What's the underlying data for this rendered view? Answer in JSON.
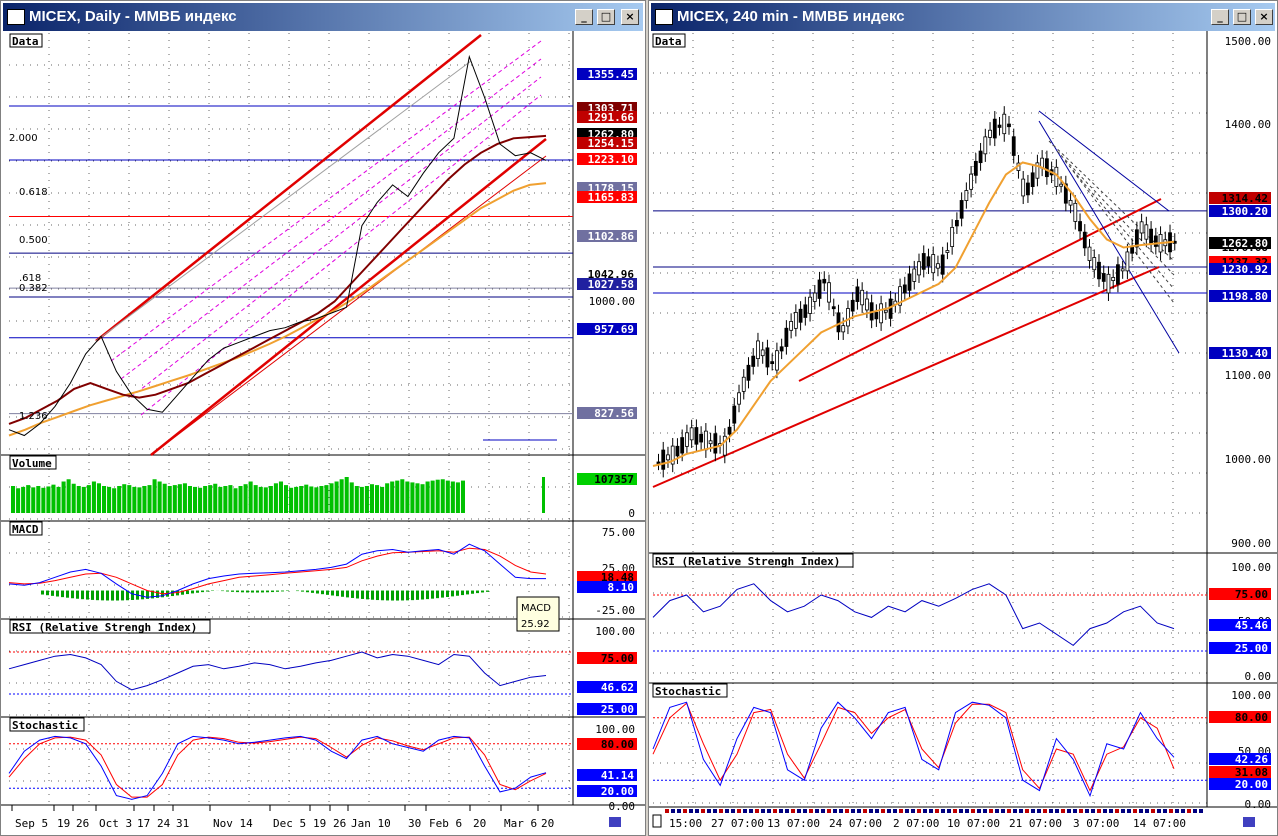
{
  "left_window": {
    "title": "MICEX, Daily - ММВБ индекс",
    "panes": {
      "data": "Data",
      "volume": "Volume",
      "macd": "MACD",
      "rsi": "RSI (Relative Strengh Index)",
      "stochastic": "Stochastic"
    },
    "fib_labels": [
      "2.000",
      "0.618",
      "0.500",
      ".618",
      "0.382",
      "1.236"
    ],
    "price_tags": [
      {
        "text": "1355.45",
        "bg": "#0000c0",
        "fg": "#ffffff"
      },
      {
        "text": "1303.71",
        "bg": "#800000",
        "fg": "#ffffff"
      },
      {
        "text": "1291.66",
        "bg": "#c00000",
        "fg": "#ffffff"
      },
      {
        "text": "1262.80",
        "bg": "#000000",
        "fg": "#ffffff"
      },
      {
        "text": "1254.15",
        "bg": "#c00000",
        "fg": "#ffffff"
      },
      {
        "text": "1223.10",
        "bg": "#ff0000",
        "fg": "#ffffff"
      },
      {
        "text": "1178.15",
        "bg": "#7070a0",
        "fg": "#ffffff"
      },
      {
        "text": "1165.83",
        "bg": "#ff0000",
        "fg": "#ffffff"
      },
      {
        "text": "1102.86",
        "bg": "#7070a0",
        "fg": "#ffffff"
      },
      {
        "text": "1042.96",
        "bg": "#ffffff",
        "fg": "#000000"
      },
      {
        "text": "1027.58",
        "bg": "#2020a0",
        "fg": "#ffffff"
      },
      {
        "text": "957.69",
        "bg": "#0000c0",
        "fg": "#ffffff"
      },
      {
        "text": "827.56",
        "bg": "#7070a0",
        "fg": "#ffffff"
      }
    ],
    "price_axis": [
      "1000.00"
    ],
    "volume_tags": {
      "last": "107357",
      "zero": "0"
    },
    "macd_axis": [
      "75.00",
      "25.00",
      "-25.00"
    ],
    "macd_tags": [
      {
        "text": "18.48",
        "bg": "#ff0000",
        "fg": "#000000"
      },
      {
        "text": "8.10",
        "bg": "#0000ff",
        "fg": "#ffffff"
      }
    ],
    "macd_tooltip": {
      "name": "MACD",
      "value": "25.92"
    },
    "rsi_axis": [
      "100.00"
    ],
    "rsi_tags": [
      {
        "text": "75.00",
        "bg": "#ff0000",
        "fg": "#000000"
      },
      {
        "text": "46.62",
        "bg": "#0000ff",
        "fg": "#ffffff"
      },
      {
        "text": "25.00",
        "bg": "#0000ff",
        "fg": "#ffffff"
      }
    ],
    "stoch_axis": [
      "100.00",
      "0.00"
    ],
    "stoch_tags": [
      {
        "text": "80.00",
        "bg": "#ff0000",
        "fg": "#000000"
      },
      {
        "text": "41.14",
        "bg": "#0000ff",
        "fg": "#ffffff"
      },
      {
        "text": "20.00",
        "bg": "#0000ff",
        "fg": "#ffffff"
      }
    ],
    "x_labels": [
      "Sep 5",
      "19",
      "26",
      "Oct 3",
      "17",
      "24",
      "31",
      "Nov 14",
      "Dec 5",
      "19",
      "26",
      "Jan 10",
      "30",
      "Feb 6",
      "20",
      "Mar 6",
      "20"
    ]
  },
  "right_window": {
    "title": "MICEX, 240 min - ММВБ индекс",
    "panes": {
      "data": "Data",
      "rsi": "RSI (Relative Strengh Index)",
      "stochastic": "Stochastic"
    },
    "price_axis": [
      "1500.00",
      "1400.00",
      "1100.00",
      "1000.00",
      "900.00"
    ],
    "price_tags": [
      {
        "text": "1314.42",
        "bg": "#c00000",
        "fg": "#000000"
      },
      {
        "text": "1300.20",
        "bg": "#0000c0",
        "fg": "#ffffff"
      },
      {
        "text": "1276.68",
        "bg": "#ffffff",
        "fg": "#000000"
      },
      {
        "text": "1262.80",
        "bg": "#000000",
        "fg": "#ffffff"
      },
      {
        "text": "1237.32",
        "bg": "#ff0000",
        "fg": "#000000"
      },
      {
        "text": "1230.92",
        "bg": "#0000c0",
        "fg": "#ffffff"
      },
      {
        "text": "1198.80",
        "bg": "#0000c0",
        "fg": "#ffffff"
      },
      {
        "text": "1130.40",
        "bg": "#0000c0",
        "fg": "#ffffff"
      }
    ],
    "rsi_axis": [
      "100.00",
      "50.00",
      "0.00"
    ],
    "rsi_tags": [
      {
        "text": "75.00",
        "bg": "#ff0000",
        "fg": "#000000"
      },
      {
        "text": "45.46",
        "bg": "#0000ff",
        "fg": "#ffffff"
      },
      {
        "text": "25.00",
        "bg": "#0000ff",
        "fg": "#ffffff"
      }
    ],
    "stoch_axis": [
      "100.00",
      "50.00",
      "0.00"
    ],
    "stoch_tags": [
      {
        "text": "80.00",
        "bg": "#ff0000",
        "fg": "#000000"
      },
      {
        "text": "42.26",
        "bg": "#0000ff",
        "fg": "#ffffff"
      },
      {
        "text": "31.08",
        "bg": "#ff0000",
        "fg": "#000000"
      },
      {
        "text": "20.00",
        "bg": "#0000ff",
        "fg": "#ffffff"
      }
    ],
    "x_labels": [
      "15:00",
      "27 07:00",
      "13 07:00",
      "24 07:00",
      "2 07:00",
      "10 07:00",
      "21 07:00",
      "3 07:00",
      "14 07:00"
    ]
  },
  "colors": {
    "price": "#000000",
    "ma_fast": "#800000",
    "ma_slow": "#f0a030",
    "trend": "#e00000",
    "level": "#000080",
    "volume": "#00c000"
  },
  "chart_data": [
    {
      "type": "line",
      "title": "MICEX, Daily - ММВБ индекс",
      "x_ticks": [
        "Sep 5",
        "19",
        "26",
        "Oct 3",
        "17",
        "24",
        "31",
        "Nov 14",
        "Dec 5",
        "19",
        "26",
        "Jan 10",
        "30",
        "Feb 6",
        "20",
        "Mar 6",
        "20"
      ],
      "ylim": [
        760,
        1460
      ],
      "series": [
        {
          "values": [
            800,
            790,
            810,
            840,
            880,
            930,
            960,
            900,
            860,
            835,
            830,
            860,
            890,
            920,
            940,
            950,
            960,
            970,
            975,
            985,
            990,
            1000,
            1010,
            1150,
            1190,
            1220,
            1200,
            1240,
            1275,
            1300,
            1440,
            1370,
            1290,
            1270,
            1275,
            1262
          ]
        },
        {
          "values": [
            810,
            820,
            835,
            850,
            870,
            880,
            870,
            860,
            855,
            860,
            870,
            880,
            895,
            910,
            925,
            940,
            955,
            970,
            985,
            1000,
            1020,
            1050,
            1080,
            1110,
            1140,
            1170,
            1200,
            1230,
            1255,
            1275,
            1290,
            1300,
            1302,
            1304
          ]
        },
        {
          "values": [
            790,
            800,
            812,
            822,
            832,
            842,
            850,
            858,
            866,
            875,
            884,
            893,
            903,
            913,
            923,
            935,
            947,
            960,
            975,
            990,
            1005,
            1022,
            1040,
            1060,
            1080,
            1100,
            1120,
            1140,
            1160,
            1180,
            1195,
            1210,
            1220,
            1223
          ]
        }
      ]
    },
    {
      "type": "bar",
      "title": "Volume",
      "values": [
        60,
        55,
        58,
        62,
        57,
        60,
        56,
        59,
        63,
        58,
        70,
        75,
        65,
        60,
        58,
        62,
        70,
        66,
        60,
        58,
        55,
        60,
        64,
        62,
        58,
        57,
        60,
        62,
        75,
        70,
        65,
        60,
        62,
        64,
        66,
        60,
        58,
        56,
        60,
        62,
        65,
        58,
        60,
        62,
        55,
        60,
        64,
        70,
        62,
        58,
        57,
        60,
        66,
        70,
        62,
        56,
        58,
        60,
        63,
        59,
        57,
        60,
        62,
        66,
        70,
        75,
        80,
        68,
        60,
        58,
        60,
        64,
        62,
        58,
        66,
        70,
        72,
        75,
        70,
        68,
        66,
        64,
        70,
        72,
        74,
        75,
        72,
        70,
        68,
        72
      ]
    },
    {
      "type": "line",
      "title": "MACD",
      "ylim": [
        -40,
        90
      ],
      "series": [
        {
          "values": [
            10,
            8,
            12,
            20,
            28,
            32,
            26,
            10,
            -5,
            -10,
            -8,
            0,
            10,
            18,
            22,
            25,
            26,
            27,
            28,
            30,
            32,
            35,
            40,
            55,
            60,
            62,
            58,
            60,
            62,
            55,
            70,
            60,
            40,
            20,
            18,
            18
          ]
        },
        {
          "values": [
            12,
            10,
            11,
            15,
            20,
            25,
            26,
            20,
            10,
            0,
            -5,
            -3,
            3,
            10,
            15,
            20,
            22,
            24,
            26,
            28,
            30,
            32,
            35,
            45,
            52,
            57,
            58,
            59,
            60,
            58,
            64,
            62,
            52,
            38,
            28,
            25
          ]
        }
      ]
    },
    {
      "type": "line",
      "title": "RSI (Relative Strengh Index)",
      "ylim": [
        0,
        100
      ],
      "series": [
        {
          "values": [
            55,
            60,
            65,
            70,
            72,
            68,
            60,
            40,
            30,
            35,
            42,
            50,
            58,
            60,
            55,
            58,
            62,
            60,
            55,
            58,
            62,
            65,
            70,
            75,
            68,
            72,
            70,
            65,
            60,
            72,
            70,
            50,
            35,
            40,
            45,
            47
          ]
        }
      ]
    },
    {
      "type": "line",
      "title": "Stochastic",
      "ylim": [
        0,
        100
      ],
      "series": [
        {
          "values": [
            40,
            70,
            85,
            90,
            88,
            80,
            50,
            10,
            5,
            10,
            40,
            80,
            90,
            88,
            85,
            80,
            82,
            85,
            88,
            90,
            85,
            70,
            60,
            85,
            90,
            80,
            75,
            70,
            85,
            90,
            88,
            50,
            15,
            20,
            35,
            41
          ]
        },
        {
          "values": [
            35,
            60,
            80,
            88,
            89,
            85,
            65,
            25,
            8,
            8,
            25,
            65,
            85,
            89,
            87,
            82,
            81,
            83,
            86,
            89,
            87,
            75,
            62,
            78,
            88,
            84,
            77,
            72,
            80,
            88,
            89,
            65,
            25,
            18,
            30,
            40
          ]
        }
      ]
    },
    {
      "type": "line",
      "title": "MICEX, 240 min - ММВБ индекс",
      "x_ticks": [
        "15:00",
        "27 07:00",
        "13 07:00",
        "24 07:00",
        "2 07:00",
        "10 07:00",
        "21 07:00",
        "3 07:00",
        "14 07:00"
      ],
      "ylim": [
        880,
        1520
      ],
      "series": [
        {
          "values": [
            990,
            1000,
            1025,
            1015,
            1010,
            1080,
            1130,
            1110,
            1160,
            1180,
            1215,
            1150,
            1200,
            1170,
            1180,
            1210,
            1240,
            1230,
            1290,
            1350,
            1400,
            1410,
            1320,
            1360,
            1340,
            1300,
            1240,
            1210,
            1230,
            1280,
            1260,
            1262
          ]
        },
        {
          "values": [
            985,
            990,
            1000,
            1005,
            1010,
            1030,
            1060,
            1090,
            1110,
            1130,
            1150,
            1160,
            1170,
            1175,
            1180,
            1190,
            1200,
            1210,
            1230,
            1270,
            1310,
            1345,
            1360,
            1355,
            1345,
            1320,
            1290,
            1265,
            1255,
            1258,
            1260,
            1262
          ]
        }
      ]
    },
    {
      "type": "line",
      "title": "RSI (Relative Strengh Index)",
      "ylim": [
        0,
        100
      ],
      "series": [
        {
          "values": [
            55,
            70,
            75,
            60,
            65,
            80,
            85,
            70,
            60,
            65,
            75,
            70,
            60,
            55,
            65,
            60,
            70,
            65,
            72,
            80,
            85,
            75,
            45,
            50,
            40,
            30,
            45,
            50,
            60,
            65,
            50,
            45
          ]
        }
      ]
    },
    {
      "type": "line",
      "title": "Stochastic",
      "ylim": [
        0,
        100
      ],
      "series": [
        {
          "values": [
            50,
            90,
            95,
            40,
            15,
            60,
            90,
            85,
            30,
            20,
            70,
            95,
            80,
            60,
            85,
            90,
            40,
            30,
            85,
            95,
            92,
            80,
            20,
            10,
            60,
            40,
            5,
            55,
            50,
            85,
            60,
            42
          ]
        },
        {
          "values": [
            45,
            80,
            94,
            55,
            20,
            45,
            85,
            88,
            45,
            22,
            55,
            90,
            85,
            65,
            80,
            88,
            50,
            32,
            75,
            93,
            93,
            85,
            30,
            12,
            50,
            45,
            10,
            45,
            52,
            80,
            70,
            31
          ]
        }
      ]
    }
  ]
}
